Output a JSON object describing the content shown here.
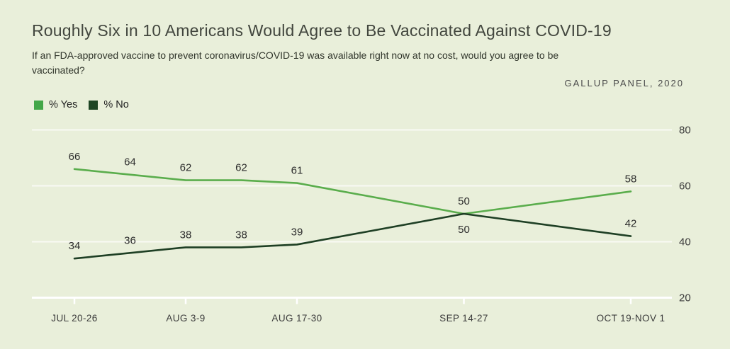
{
  "header": {
    "title": "Roughly Six in 10 Americans Would Agree to Be Vaccinated Against COVID-19",
    "subtitle": "If an FDA-approved vaccine to prevent coronavirus/COVID-19 was available right now at no cost, would you agree to be vaccinated?",
    "source": "GALLUP PANEL, 2020"
  },
  "legend": {
    "items": [
      {
        "label": "% Yes",
        "color": "#43a748"
      },
      {
        "label": "% No",
        "color": "#1e4624"
      }
    ]
  },
  "colors": {
    "background": "#e9efda",
    "grid": "#ffffff",
    "yes_line": "#5aad4c",
    "no_line": "#1e3f24"
  },
  "chart_data": {
    "type": "line",
    "title": "Roughly Six in 10 Americans Would Agree to Be Vaccinated Against COVID-19",
    "subtitle": "If an FDA-approved vaccine to prevent coronavirus/COVID-19 was available right now at no cost, would you agree to be vaccinated?",
    "source": "GALLUP PANEL, 2020",
    "x_tick_labels": [
      "JUL 20-26",
      "AUG 3-9",
      "AUG 17-30",
      "SEP 14-27",
      "OCT 19-NOV 1"
    ],
    "x_tick_point_indices": [
      0,
      2,
      4,
      5,
      6
    ],
    "x_units": [
      0,
      1,
      2,
      3,
      4,
      7,
      10
    ],
    "series": [
      {
        "name": "% Yes",
        "line_color": "#5aad4c",
        "values": [
          66,
          64,
          62,
          62,
          61,
          50,
          58
        ]
      },
      {
        "name": "% No",
        "line_color": "#1e3f24",
        "values": [
          34,
          36,
          38,
          38,
          39,
          50,
          42
        ]
      }
    ],
    "ylim": [
      20,
      80
    ],
    "yticks": [
      20,
      40,
      60,
      80
    ],
    "legend_position": "top-left",
    "grid": "horizontal"
  }
}
